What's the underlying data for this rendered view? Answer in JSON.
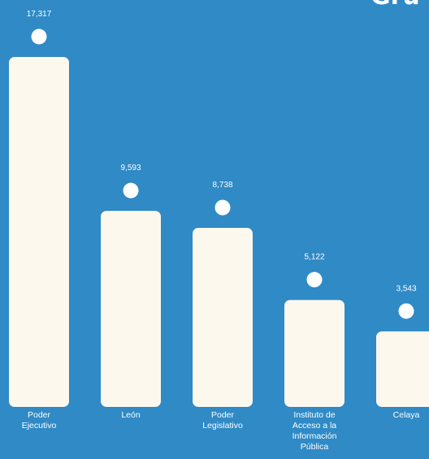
{
  "colors": {
    "background": "#2f8ac6",
    "bar": "#fdf8ee",
    "dot": "#ffffff",
    "text": "#ffffff"
  },
  "title_fragment": "Gru",
  "chart_data": {
    "type": "bar",
    "categories": [
      [
        "Poder",
        "Ejecutivo"
      ],
      [
        "León"
      ],
      [
        "Poder",
        "Legislativo"
      ],
      [
        "Instituto de",
        "Acceso a la",
        "Información",
        "Pública"
      ],
      [
        "Celaya"
      ]
    ],
    "values": [
      17317,
      9593,
      8738,
      5122,
      3543
    ],
    "value_labels": [
      "17,317",
      "9,593",
      "8,738",
      "5,122",
      "3,543"
    ],
    "ylim": [
      0,
      17317
    ],
    "grid": false,
    "legend": "none"
  }
}
